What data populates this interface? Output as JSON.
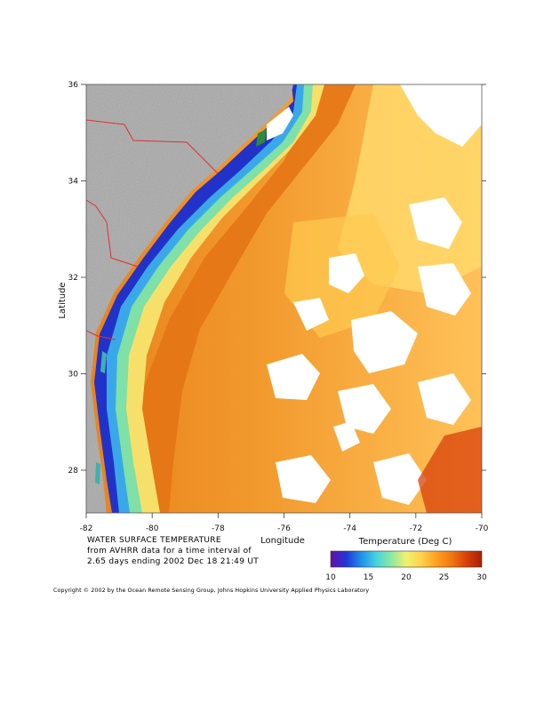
{
  "axes": {
    "x_title": "Longitude",
    "y_title": "Latitude",
    "x_tick_labels": [
      "-82",
      "-80",
      "-78",
      "-76",
      "-74",
      "-72",
      "-70"
    ],
    "y_tick_labels": [
      "36",
      "34",
      "32",
      "30",
      "28"
    ]
  },
  "caption": {
    "line1": "WATER SURFACE TEMPERATURE",
    "line2": "from AVHRR data for a time interval of",
    "line3": "2.65 days ending 2002 Dec 18 21:49 UT"
  },
  "colorbar": {
    "title": "Temperature (Deg C)",
    "tick_labels": [
      "10",
      "15",
      "20",
      "25",
      "30"
    ],
    "colors": [
      "#6a0fa8",
      "#2233d6",
      "#1e8fe8",
      "#45d2e0",
      "#8ee8a0",
      "#f0f070",
      "#ffd24a",
      "#ffa020",
      "#f07810",
      "#d8400a",
      "#a81f08"
    ]
  },
  "copyright": "Copyright © 2002 by the Ocean Remote Sensing Group, Johns Hopkins University Applied Physics Laboratory",
  "map_colors": {
    "land": "#a9a9a9",
    "state_boundary": "#e03030",
    "cloud": "#ffffff",
    "warm_sst": "#f29a2e",
    "cool_shelf": "#ffd86a"
  }
}
